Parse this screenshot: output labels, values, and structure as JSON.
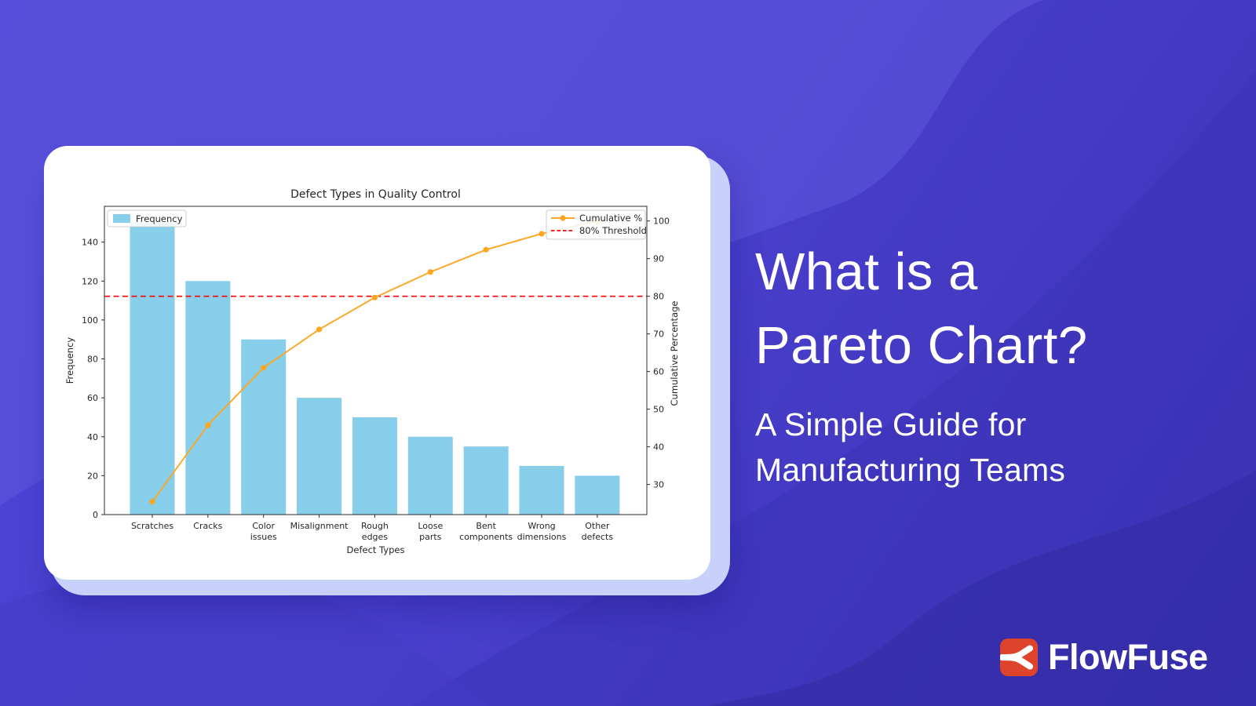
{
  "headline": {
    "line1": "What is a",
    "line2": "Pareto Chart?",
    "sub1": "A Simple Guide for",
    "sub2": "Manufacturing Teams"
  },
  "logo": {
    "text": "FlowFuse",
    "icon": "flowfuse-fork-icon",
    "badge_color": "#DE432B"
  },
  "chart_data": {
    "type": "bar",
    "subtype": "pareto-bar-plus-line",
    "title": "Defect Types in Quality Control",
    "xlabel": "Defect Types",
    "ylabel_left": "Frequency",
    "ylabel_right": "Cumulative Percentage",
    "categories": [
      "Scratches",
      "Cracks",
      "Color\nissues",
      "Misalignment",
      "Rough\nedges",
      "Loose\nparts",
      "Bent\ncomponents",
      "Wrong\ndimensions",
      "Other\ndefects"
    ],
    "values": [
      150,
      120,
      90,
      60,
      50,
      40,
      35,
      25,
      20
    ],
    "series": [
      {
        "name": "Frequency",
        "type": "bar",
        "values": [
          150,
          120,
          90,
          60,
          50,
          40,
          35,
          25,
          20
        ]
      },
      {
        "name": "Cumulative %",
        "type": "line",
        "values": [
          25.42,
          45.76,
          61.02,
          71.19,
          79.66,
          86.44,
          92.37,
          96.61,
          100.0
        ]
      }
    ],
    "cumulative_pct": [
      25.42,
      45.76,
      61.02,
      71.19,
      79.66,
      86.44,
      92.37,
      96.61,
      100.0
    ],
    "threshold_pct": 80,
    "left_ticks": [
      0,
      20,
      40,
      60,
      80,
      100,
      120,
      140
    ],
    "right_ticks": [
      30,
      40,
      50,
      60,
      70,
      80,
      90,
      100
    ],
    "left_ylim": [
      0,
      158.4
    ],
    "right_ylim": [
      22.0,
      103.9
    ],
    "grid": false,
    "legend_left": {
      "frequency_label": "Frequency"
    },
    "legend_right": {
      "cumulative_label": "Cumulative %",
      "threshold_label": "80% Threshold"
    },
    "colors": {
      "bar": "#87CEEB",
      "line": "#FFA620",
      "threshold": "#FF0000",
      "text": "#262626",
      "spine": "#2b2b2b",
      "legend_border": "#cccccc"
    }
  }
}
